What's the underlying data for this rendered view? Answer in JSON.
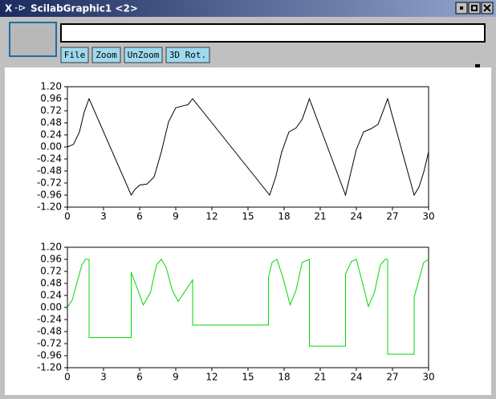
{
  "window": {
    "title": "ScilabGraphic1 <2>"
  },
  "toolbar": {
    "buttons": [
      "File",
      "Zoom",
      "UnZoom",
      "3D Rot."
    ]
  },
  "chart_data": [
    {
      "type": "line",
      "x": [
        0,
        0.5,
        1.0,
        1.4,
        1.8,
        5.3,
        5.6,
        6.0,
        6.6,
        7.2,
        7.8,
        8.4,
        9.0,
        9.6,
        10.0,
        10.4,
        16.8,
        17.3,
        17.8,
        18.4,
        19.0,
        19.5,
        20.1,
        23.1,
        23.5,
        24.0,
        24.6,
        25.2,
        25.8,
        26.2,
        26.6,
        28.8,
        29.2,
        29.6,
        30
      ],
      "series": [
        {
          "color": "#000000",
          "values": [
            0,
            0.05,
            0.3,
            0.7,
            0.96,
            -0.96,
            -0.85,
            -0.76,
            -0.74,
            -0.6,
            -0.1,
            0.5,
            0.78,
            0.82,
            0.84,
            0.96,
            -0.96,
            -0.6,
            -0.1,
            0.3,
            0.38,
            0.55,
            0.96,
            -0.96,
            -0.55,
            -0.05,
            0.3,
            0.36,
            0.45,
            0.7,
            0.96,
            -0.96,
            -0.8,
            -0.5,
            -0.1
          ]
        }
      ],
      "xlim": [
        0,
        30
      ],
      "xticks": [
        0,
        3,
        6,
        9,
        12,
        15,
        18,
        21,
        24,
        27,
        30
      ],
      "ylim": [
        -1.2,
        1.2
      ],
      "yticks": [
        {
          "value": 1.2,
          "label": "1.20"
        },
        {
          "value": 0.96,
          "label": "0.96"
        },
        {
          "value": 0.72,
          "label": "0.72"
        },
        {
          "value": 0.48,
          "label": "0.48"
        },
        {
          "value": 0.24,
          "label": "0.24"
        },
        {
          "value": 0,
          "label": "0.00"
        },
        {
          "value": -0.24,
          "label": "-0.24"
        },
        {
          "value": -0.48,
          "label": "-0.48"
        },
        {
          "value": -0.72,
          "label": "-0.72"
        },
        {
          "value": -0.96,
          "label": "-0.96"
        },
        {
          "value": -1.2,
          "label": "-1.20"
        }
      ]
    },
    {
      "type": "line",
      "x": [
        0,
        0.4,
        0.8,
        1.2,
        1.5,
        1.8,
        1.8,
        5.3,
        5.3,
        5.7,
        6.3,
        6.9,
        7.4,
        7.8,
        8.2,
        8.7,
        9.2,
        9.7,
        10.4,
        10.4,
        16.7,
        16.7,
        17.0,
        17.4,
        17.9,
        18.5,
        19.0,
        19.5,
        20.1,
        20.1,
        23.1,
        23.1,
        23.6,
        24.0,
        24.5,
        25.0,
        25.5,
        26.0,
        26.4,
        26.6,
        26.6,
        28.8,
        28.8,
        29.2,
        29.6,
        30
      ],
      "series": [
        {
          "color": "#00d800",
          "values": [
            0,
            0.15,
            0.5,
            0.85,
            0.96,
            0.96,
            -0.6,
            -0.6,
            0.7,
            0.45,
            0.05,
            0.3,
            0.85,
            0.96,
            0.8,
            0.35,
            0.12,
            0.3,
            0.55,
            -0.35,
            -0.35,
            0.6,
            0.9,
            0.96,
            0.6,
            0.05,
            0.35,
            0.9,
            0.96,
            -0.77,
            -0.77,
            0.67,
            0.92,
            0.96,
            0.5,
            0.02,
            0.3,
            0.85,
            0.96,
            0.96,
            -0.93,
            -0.93,
            0.2,
            0.55,
            0.9,
            0.96
          ]
        }
      ],
      "xlim": [
        0,
        30
      ],
      "xticks": [
        0,
        3,
        6,
        9,
        12,
        15,
        18,
        21,
        24,
        27,
        30
      ],
      "ylim": [
        -1.2,
        1.2
      ],
      "yticks": [
        {
          "value": 1.2,
          "label": "1.20"
        },
        {
          "value": 0.96,
          "label": "0.96"
        },
        {
          "value": 0.72,
          "label": "0.72"
        },
        {
          "value": 0.48,
          "label": "0.48"
        },
        {
          "value": 0.24,
          "label": "0.24"
        },
        {
          "value": 0,
          "label": "0.00"
        },
        {
          "value": -0.24,
          "label": "-0.24"
        },
        {
          "value": -0.48,
          "label": "-0.48"
        },
        {
          "value": -0.72,
          "label": "-0.72"
        },
        {
          "value": -0.96,
          "label": "-0.96"
        },
        {
          "value": -1.2,
          "label": "-1.20"
        }
      ]
    }
  ]
}
